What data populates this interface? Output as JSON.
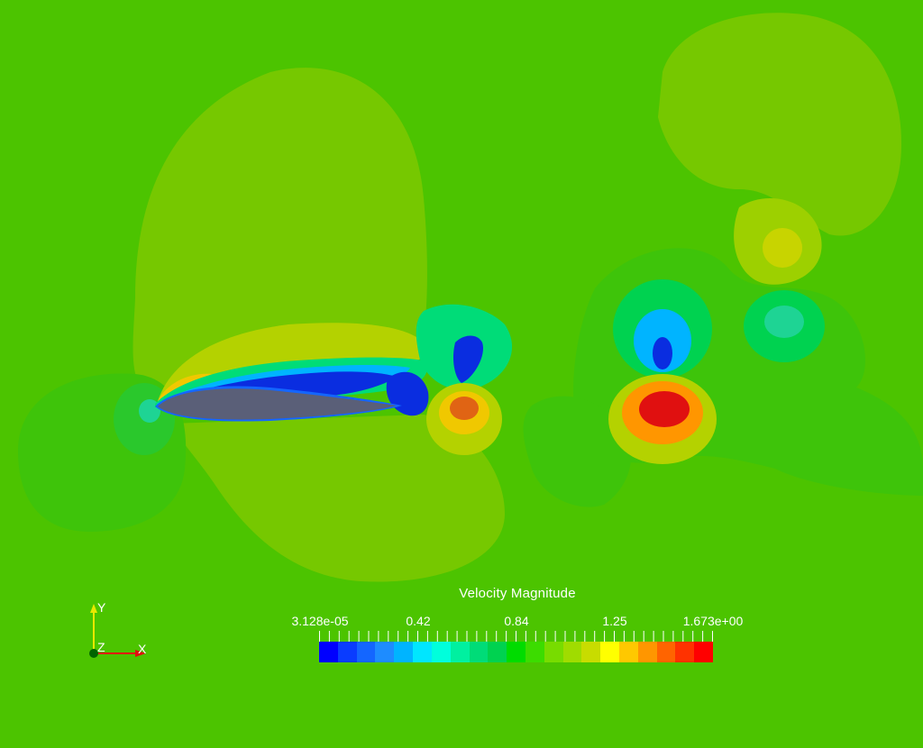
{
  "legend": {
    "title": "Velocity Magnitude",
    "ticks": [
      "3.128e-05",
      "0.42",
      "0.84",
      "1.25",
      "1.673e+00"
    ],
    "range": [
      3.128e-05,
      1.673
    ],
    "colors": [
      "#0000ff",
      "#0a3cff",
      "#1466ff",
      "#1e8cff",
      "#00b4ff",
      "#00e6ff",
      "#00ffdc",
      "#00f0a0",
      "#00dc78",
      "#00d250",
      "#00dc00",
      "#3cdc00",
      "#78dc00",
      "#a0dc00",
      "#c8dc00",
      "#ffff00",
      "#ffc800",
      "#ff9600",
      "#ff6400",
      "#ff3200",
      "#ff0000"
    ]
  },
  "axes": {
    "x_label": "X",
    "y_label": "Y",
    "z_label": "Z"
  },
  "colors": {
    "background": "#4cc400",
    "airfoil": "#5a5f78",
    "low_speed": "#0a2de0",
    "high_speed": "#e01010"
  }
}
